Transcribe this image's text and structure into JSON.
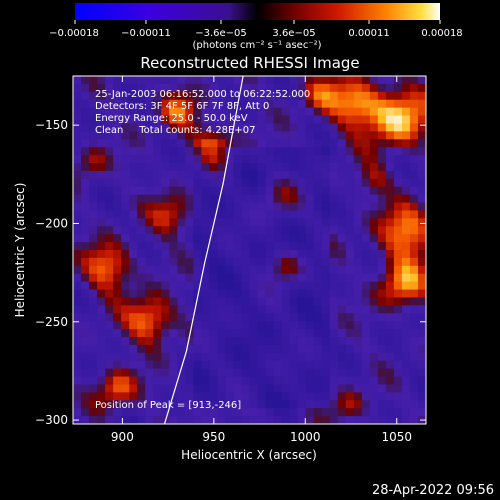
{
  "chart_data": {
    "type": "heatmap",
    "title": "Reconstructed RHESSI Image",
    "xlabel": "Heliocentric X (arcsec)",
    "ylabel": "Heliocentric Y (arcsec)",
    "xlim": [
      873,
      1066
    ],
    "ylim": [
      -302,
      -125
    ],
    "x_ticks": [
      900,
      950,
      1000,
      1050
    ],
    "y_ticks": [
      -300,
      -250,
      -200,
      -150
    ],
    "x_tick_labels": [
      "900",
      "950",
      "1000",
      "1050"
    ],
    "y_tick_labels": [
      "−300",
      "−250",
      "−200",
      "−150"
    ],
    "colorbar": {
      "range": [
        -0.00018,
        0.00018
      ],
      "tick_values": [
        -0.00018,
        -0.00011,
        -3.6e-05,
        3.6e-05,
        0.00011,
        0.00018
      ],
      "tick_labels": [
        "−0.00018",
        "−0.00011",
        "−3.6e−05",
        "3.6e−05",
        "0.00011",
        "0.00018"
      ],
      "units_label": "(photons cm⁻² s⁻¹ asec⁻²)"
    },
    "annotations": [
      "25-Jan-2003 06:16:52.000 to 06:22:52.000",
      "Detectors: 3F 4F 5F 6F 7F 8F, Att 0",
      "Energy Range: 25.0 - 50.0 keV",
      "Clean     Total counts: 4.28E+07"
    ],
    "peak_label": "Position of Peak = [913,-246]",
    "limb_curve": [
      [
        923,
        -302
      ],
      [
        935,
        -265
      ],
      [
        945,
        -220
      ],
      [
        955,
        -180
      ],
      [
        962,
        -145
      ],
      [
        966,
        -125
      ]
    ],
    "colors": {
      "low": "#0000ff",
      "mid": "#000000",
      "high": "#ffffff"
    }
  },
  "footer": {
    "date": "28-Apr-2022 09:56"
  }
}
